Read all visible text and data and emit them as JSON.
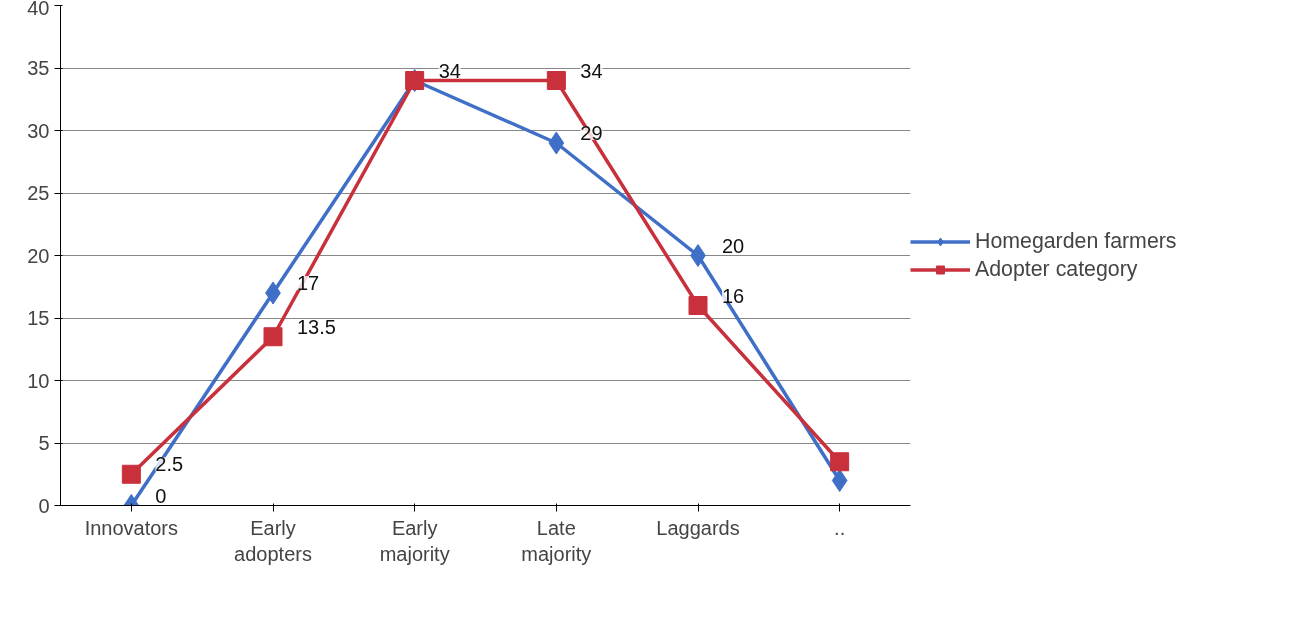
{
  "chart_data": {
    "type": "line",
    "categories": [
      "Innovators",
      "Early\nadopters",
      "Early\nmajority",
      "Late\nmajority",
      "Laggards",
      ".."
    ],
    "series": [
      {
        "name": "Homegarden farmers",
        "color": "#3f6fc6",
        "marker": "diamond",
        "values": [
          0,
          17,
          34,
          29,
          20,
          2
        ],
        "value_labels": [
          "0",
          "17",
          "34",
          "29",
          "20",
          null
        ]
      },
      {
        "name": "Adopter category",
        "color": "#c8303c",
        "marker": "square",
        "values": [
          2.5,
          13.5,
          34,
          34,
          16,
          3.5
        ],
        "value_labels": [
          "2.5",
          "13.5",
          null,
          "34",
          "16",
          null
        ]
      }
    ],
    "ylim": [
      0,
      40
    ],
    "yticks": [
      0,
      5,
      10,
      15,
      20,
      25,
      30,
      35,
      40
    ],
    "grid": "y",
    "legend": "right"
  }
}
